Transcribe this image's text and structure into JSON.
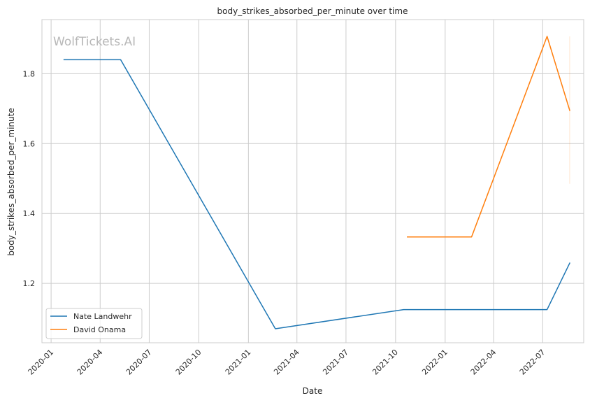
{
  "chart_data": {
    "type": "line",
    "title": "body_strikes_absorbed_per_minute over time",
    "xlabel": "Date",
    "ylabel": "body_strikes_absorbed_per_minute",
    "watermark": "WolfTickets.AI",
    "xlim": [
      "2019-12-15",
      "2022-09-15"
    ],
    "ylim": [
      1.03,
      1.955
    ],
    "x_ticks": [
      "2020-01",
      "2020-04",
      "2020-07",
      "2020-10",
      "2021-01",
      "2021-04",
      "2021-07",
      "2021-10",
      "2022-01",
      "2022-04",
      "2022-07"
    ],
    "y_ticks": [
      "1.2",
      "1.4",
      "1.6",
      "1.8"
    ],
    "y_tick_values": [
      1.2,
      1.4,
      1.6,
      1.8
    ],
    "grid": true,
    "legend_position": "lower-left",
    "series": [
      {
        "name": "Nate Landwehr",
        "color": "#1f77b4",
        "x": [
          "2020-01-25",
          "2020-05-09",
          "2021-02-20",
          "2021-10-16",
          "2022-07-09",
          "2022-08-20"
        ],
        "y": [
          1.84,
          1.84,
          1.07,
          1.125,
          1.125,
          1.258
        ]
      },
      {
        "name": "David Onama",
        "color": "#ff7f0e",
        "x": [
          "2021-10-23",
          "2022-02-19",
          "2022-07-09",
          "2022-08-20"
        ],
        "y": [
          1.333,
          1.333,
          1.907,
          1.695
        ]
      }
    ],
    "error_band": {
      "color": "#ff7f0e",
      "x": "2022-08-20",
      "low": 1.485,
      "high": 1.907
    }
  }
}
